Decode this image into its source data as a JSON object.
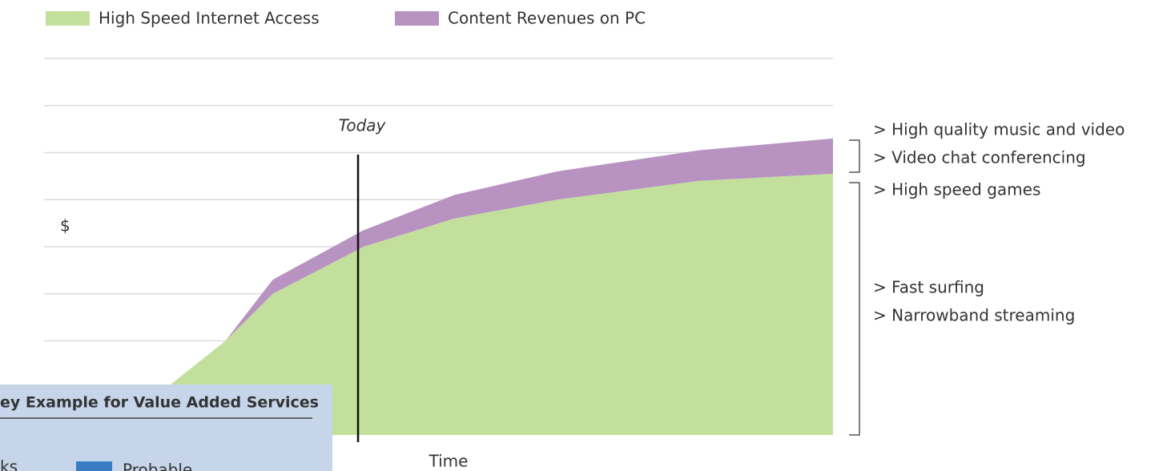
{
  "chart_data": {
    "type": "stacked_area",
    "ylabel": "$",
    "xlabel": "Time",
    "x": [
      0.8,
      2.3,
      2.9,
      4.05,
      5.2,
      6.5,
      8.3,
      10
    ],
    "xlim": [
      0,
      10
    ],
    "ylim": [
      0,
      8
    ],
    "yticks": [
      1,
      2,
      3,
      4,
      5,
      6,
      7,
      8
    ],
    "grid": true,
    "series": [
      {
        "name": "High Speed Internet Access",
        "color": "#c2e09c",
        "values": [
          0,
          2.0,
          3.0,
          4.0,
          4.6,
          5.0,
          5.4,
          5.55
        ]
      },
      {
        "name": "Content Revenues on PC",
        "color": "#b893c2",
        "values": [
          0,
          0,
          0.3,
          0.35,
          0.5,
          0.6,
          0.65,
          0.75
        ]
      }
    ],
    "marker": {
      "label": "Today",
      "x": 3.98
    },
    "annotations": {
      "top": [
        "> High quality music and video",
        "> Video chat conferencing"
      ],
      "bottom": [
        "> High speed games",
        "> Fast surfing",
        "> Narrowband streaming"
      ]
    }
  },
  "panel": {
    "title": "ey Example for Value Added Services",
    "items": [
      "ks",
      "Probable"
    ]
  }
}
